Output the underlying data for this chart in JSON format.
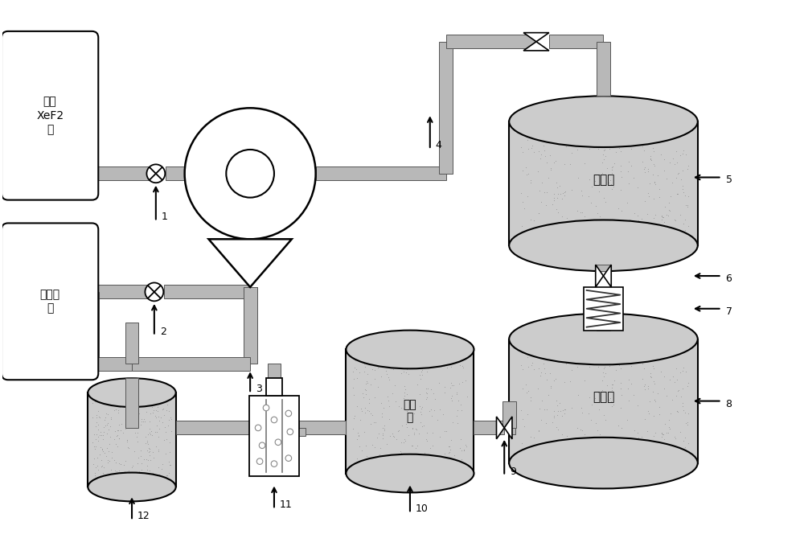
{
  "bg_color": "#ffffff",
  "line_color": "#000000",
  "pipe_color": "#b8b8b8",
  "pipe_edge": "#555555",
  "tank_fill": "#cccccc",
  "labels": {
    "box1": "固体\nXeF2\n源",
    "box2": "二氧化\n碳",
    "tank1": "压载箱",
    "tank2": "反应腔",
    "overflow": "溢出\n腔"
  },
  "nums": [
    "1",
    "2",
    "3",
    "4",
    "5",
    "6",
    "7",
    "8",
    "9",
    "10",
    "11",
    "12"
  ],
  "figsize": [
    10.0,
    6.95
  ],
  "dpi": 100
}
